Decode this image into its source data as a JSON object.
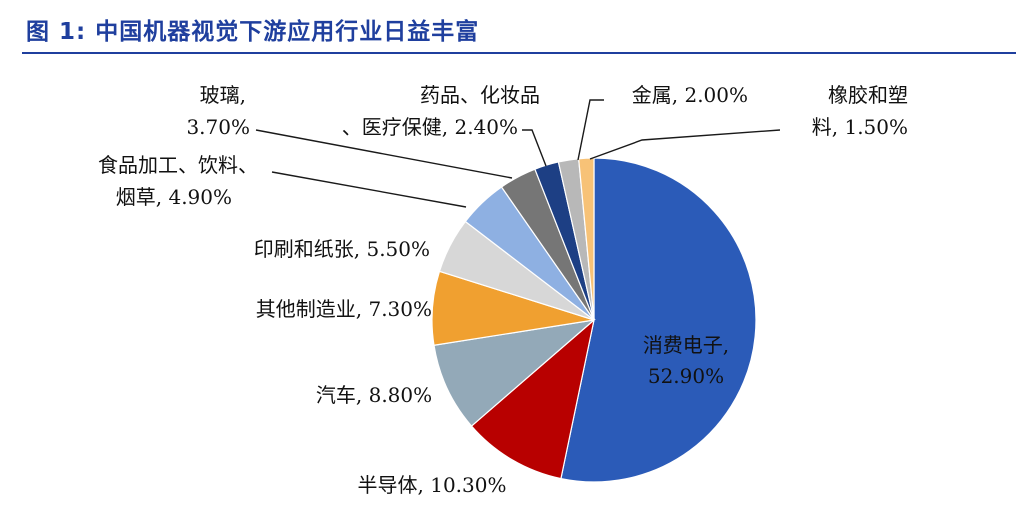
{
  "title": "图 1: 中国机器视觉下游应用行业日益丰富",
  "chart_data": {
    "type": "pie",
    "title": "图 1: 中国机器视觉下游应用行业日益丰富",
    "start_angle": "12 o'clock",
    "direction": "clockwise",
    "legend": "none",
    "slices": [
      {
        "label": "消费电子",
        "value": 52.9,
        "value_text": "52.90%",
        "color": "#2b5bb8"
      },
      {
        "label": "半导体",
        "value": 10.3,
        "value_text": "10.30%",
        "color": "#b80000"
      },
      {
        "label": "汽车",
        "value": 8.8,
        "value_text": "8.80%",
        "color": "#93a9b8"
      },
      {
        "label": "其他制造业",
        "value": 7.3,
        "value_text": "7.30%",
        "color": "#f0a030"
      },
      {
        "label": "印刷和纸张",
        "value": 5.5,
        "value_text": "5.50%",
        "color": "#d7d7d7"
      },
      {
        "label": "食品加工、饮料、烟草",
        "value": 4.9,
        "value_text": "4.90%",
        "color": "#8eb0e2"
      },
      {
        "label": "玻璃",
        "value": 3.7,
        "value_text": "3.70%",
        "color": "#767676"
      },
      {
        "label": "药品、化妆品、医疗保健",
        "value": 2.4,
        "value_text": "2.40%",
        "color": "#1d3f84"
      },
      {
        "label": "金属",
        "value": 2.0,
        "value_text": "2.00%",
        "color": "#b8b8b8"
      },
      {
        "label": "橡胶和塑料",
        "value": 1.5,
        "value_text": "1.50%",
        "color": "#f7c277"
      }
    ]
  }
}
